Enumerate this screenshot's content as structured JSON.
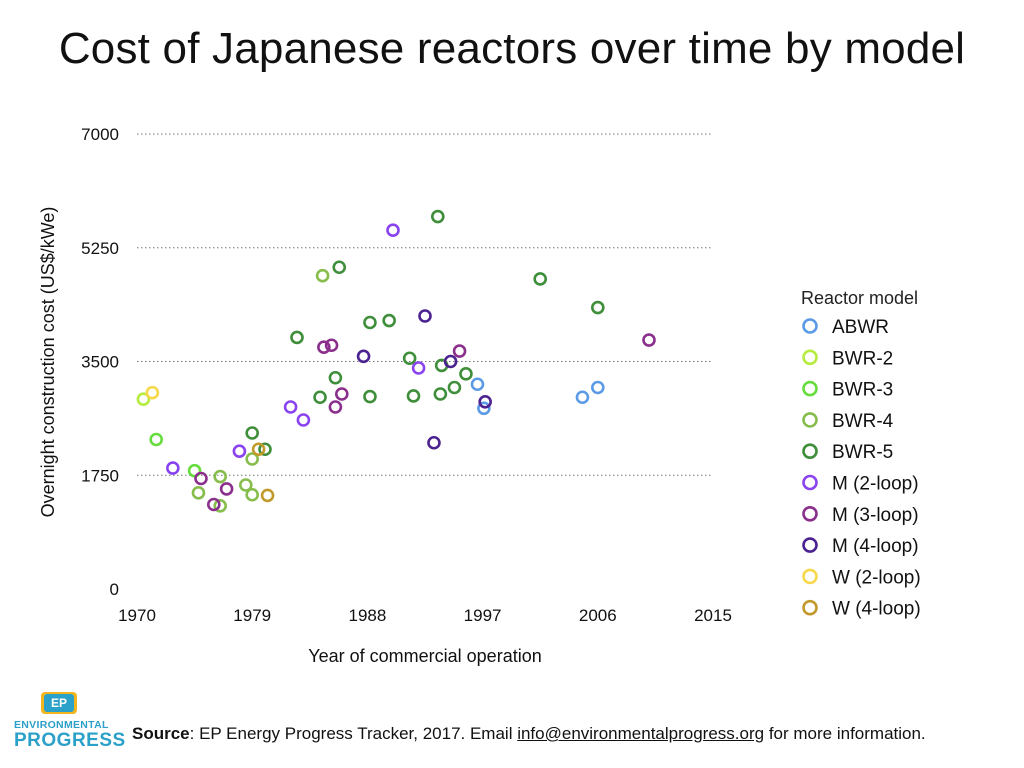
{
  "title": "Cost of Japanese reactors over time by model",
  "source": {
    "label": "Source",
    "text": ": EP Energy Progress Tracker, 2017. Email ",
    "email": "info@environmentalprogress.org",
    "suffix": " for more information."
  },
  "logo": {
    "mark": "EP",
    "line1": "ENVIRONMENTAL",
    "line2": "PROGRESS"
  },
  "chart_data": {
    "type": "scatter",
    "xlabel": "Year of commercial operation",
    "ylabel": "Overnight construction cost (US$/kWe)",
    "xlim": [
      1970,
      2015
    ],
    "ylim": [
      0,
      7000
    ],
    "xticks": [
      "1970",
      "1979",
      "1988",
      "1997",
      "2006",
      "2015"
    ],
    "yticks": [
      "0",
      "1750",
      "3500",
      "5250",
      "7000"
    ],
    "grid": "horizontal dotted",
    "legend_title": "Reactor model",
    "legend_position": "right",
    "series": [
      {
        "name": "ABWR",
        "color": "#5b9be6",
        "points": [
          [
            1996.6,
            3150
          ],
          [
            1997.1,
            2780
          ],
          [
            2004.8,
            2950
          ],
          [
            2006.0,
            3100
          ]
        ]
      },
      {
        "name": "BWR-2",
        "color": "#b6ec3f",
        "points": [
          [
            1970.5,
            2920
          ]
        ]
      },
      {
        "name": "BWR-3",
        "color": "#66dd3c",
        "points": [
          [
            1971.5,
            2300
          ],
          [
            1974.5,
            1820
          ]
        ]
      },
      {
        "name": "BWR-4",
        "color": "#86bd4c",
        "points": [
          [
            1974.8,
            1480
          ],
          [
            1976.5,
            1280
          ],
          [
            1976.5,
            1730
          ],
          [
            1978.5,
            1600
          ],
          [
            1979.0,
            1450
          ],
          [
            1979.0,
            2000
          ],
          [
            1984.5,
            4820
          ]
        ]
      },
      {
        "name": "BWR-5",
        "color": "#3e8e3a",
        "points": [
          [
            1979.0,
            2400
          ],
          [
            1980.0,
            2150
          ],
          [
            1982.5,
            3870
          ],
          [
            1984.3,
            2950
          ],
          [
            1985.5,
            3250
          ],
          [
            1985.8,
            4950
          ],
          [
            1988.2,
            4100
          ],
          [
            1988.2,
            2960
          ],
          [
            1989.7,
            4130
          ],
          [
            1991.3,
            3550
          ],
          [
            1991.6,
            2970
          ],
          [
            1993.5,
            5730
          ],
          [
            1993.7,
            3000
          ],
          [
            1993.8,
            3440
          ],
          [
            1994.8,
            3100
          ],
          [
            1995.7,
            3310
          ],
          [
            2001.5,
            4770
          ],
          [
            2006.0,
            4330
          ]
        ]
      },
      {
        "name": "M (2-loop)",
        "color": "#8a44ef",
        "points": [
          [
            1972.8,
            1860
          ],
          [
            1978.0,
            2120
          ],
          [
            1982.0,
            2800
          ],
          [
            1983.0,
            2600
          ],
          [
            1990.0,
            5520
          ],
          [
            1992.0,
            3400
          ]
        ]
      },
      {
        "name": "M (3-loop)",
        "color": "#8a2f8c",
        "points": [
          [
            1975.0,
            1700
          ],
          [
            1976.0,
            1300
          ],
          [
            1977.0,
            1540
          ],
          [
            1984.6,
            3720
          ],
          [
            1985.2,
            3750
          ],
          [
            1985.5,
            2800
          ],
          [
            1986.0,
            3000
          ],
          [
            1995.2,
            3660
          ],
          [
            2010.0,
            3830
          ]
        ]
      },
      {
        "name": "M (4-loop)",
        "color": "#4b2290",
        "points": [
          [
            1987.7,
            3580
          ],
          [
            1992.5,
            4200
          ],
          [
            1993.2,
            2250
          ],
          [
            1994.5,
            3500
          ],
          [
            1997.2,
            2880
          ]
        ]
      },
      {
        "name": "W (2-loop)",
        "color": "#f6d84a",
        "points": [
          [
            1971.2,
            3020
          ]
        ]
      },
      {
        "name": "W (4-loop)",
        "color": "#c29a2c",
        "points": [
          [
            1979.5,
            2150
          ],
          [
            1980.2,
            1440
          ]
        ]
      }
    ]
  }
}
